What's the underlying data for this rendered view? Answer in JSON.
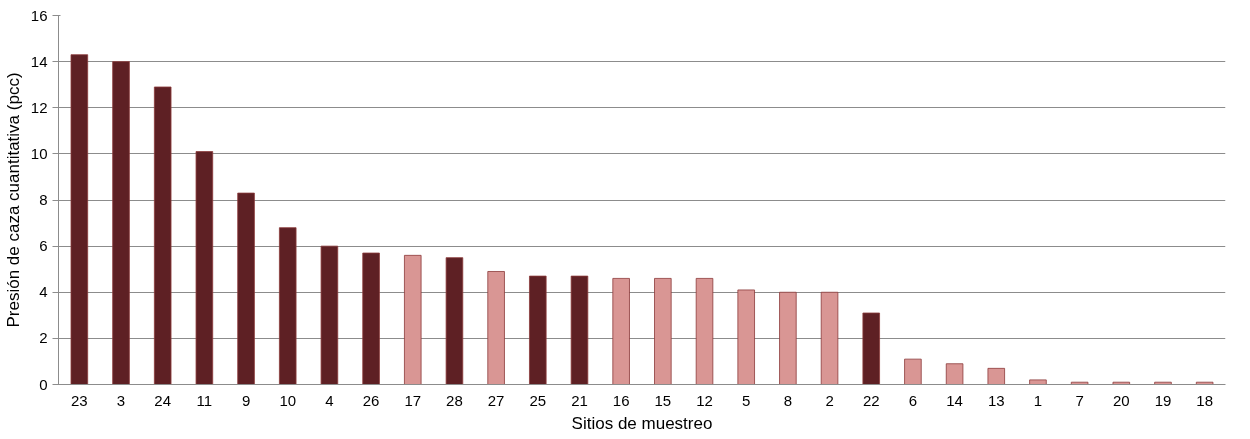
{
  "chart_data": {
    "type": "bar",
    "xlabel": "Sitios de muestreo",
    "ylabel": "Presión de caza cuantitativa (pcc)",
    "categories": [
      "23",
      "3",
      "24",
      "11",
      "9",
      "10",
      "4",
      "26",
      "17",
      "28",
      "27",
      "25",
      "21",
      "16",
      "15",
      "12",
      "5",
      "8",
      "2",
      "22",
      "6",
      "14",
      "13",
      "1",
      "7",
      "20",
      "19",
      "18"
    ],
    "values": [
      14.3,
      14.0,
      12.9,
      10.1,
      8.3,
      6.8,
      6.0,
      5.7,
      5.6,
      5.5,
      4.9,
      4.7,
      4.7,
      4.6,
      4.6,
      4.6,
      4.1,
      4.0,
      4.0,
      3.1,
      1.1,
      0.9,
      0.7,
      0.2,
      0.1,
      0.1,
      0.1,
      0.1
    ],
    "colors": [
      "#5e2024",
      "#5e2024",
      "#5e2024",
      "#5e2024",
      "#5e2024",
      "#5e2024",
      "#5e2024",
      "#5e2024",
      "#d99694",
      "#5e2024",
      "#d99694",
      "#5e2024",
      "#5e2024",
      "#d99694",
      "#d99694",
      "#d99694",
      "#d99694",
      "#d99694",
      "#d99694",
      "#5e2024",
      "#d99694",
      "#d99694",
      "#d99694",
      "#d99694",
      "#d99694",
      "#d99694",
      "#d99694",
      "#d99694"
    ],
    "ylim": [
      0,
      16
    ],
    "yticks": [
      0,
      2,
      4,
      6,
      8,
      10,
      12,
      14,
      16
    ],
    "grid": "y"
  }
}
